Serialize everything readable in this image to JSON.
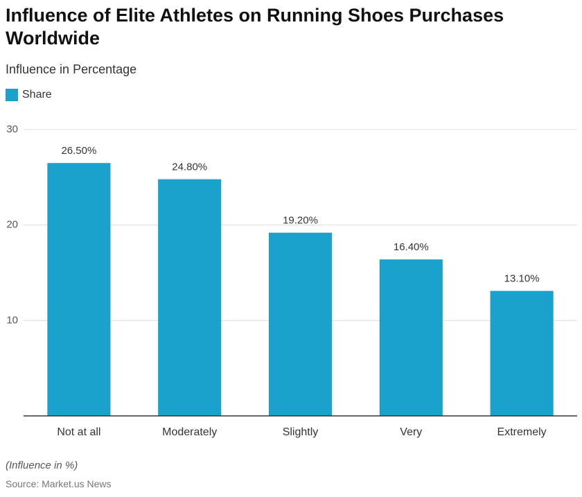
{
  "chart_data": {
    "type": "bar",
    "title": "Influence of Elite Athletes on Running Shoes Purchases Worldwide",
    "subtitle": "Influence in Percentage",
    "categories": [
      "Not at all",
      "Moderately",
      "Slightly",
      "Very",
      "Extremely"
    ],
    "series": [
      {
        "name": "Share",
        "color": "#1aa1cc",
        "values": [
          26.5,
          24.8,
          19.2,
          16.4,
          13.1
        ],
        "value_labels": [
          "26.50%",
          "24.80%",
          "19.20%",
          "16.40%",
          "13.10%"
        ]
      }
    ],
    "ylim": [
      0,
      30
    ],
    "yticks": [
      10,
      20,
      30
    ],
    "grid": true,
    "note": "(Influence in %)",
    "source": "Source: Market.us News"
  }
}
